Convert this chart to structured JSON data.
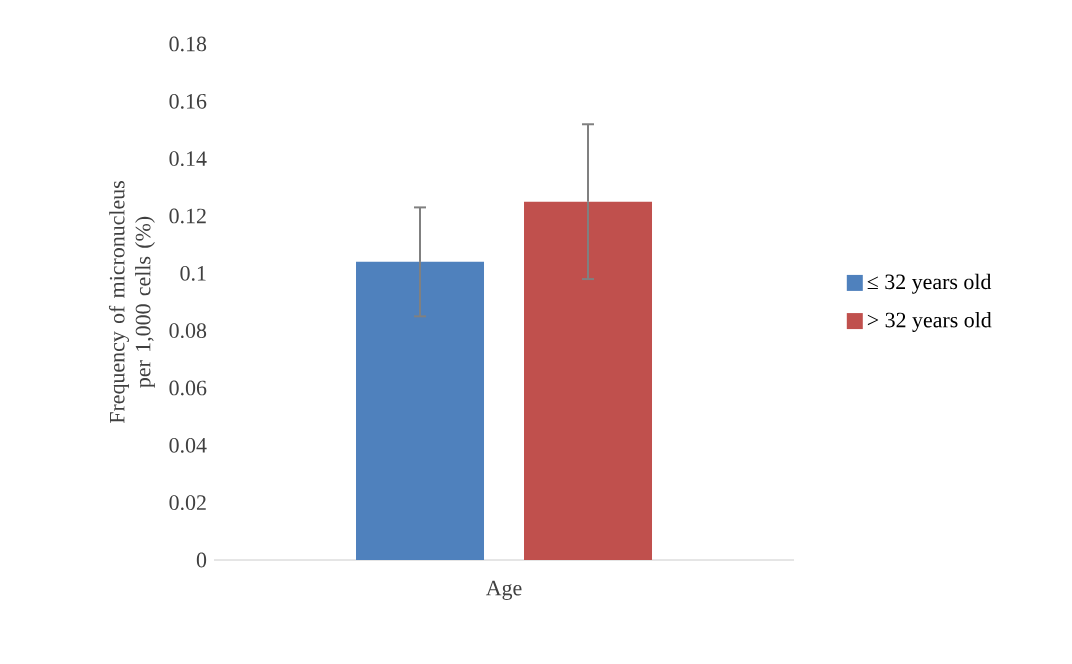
{
  "chart_data": {
    "type": "bar",
    "xlabel": "Age",
    "ylabel": "Frequency of micronucleus per 1,000 cells (%)",
    "categories": [
      null
    ],
    "series": [
      {
        "name": "≤ 32 years old",
        "color": "#4f81bd",
        "values": [
          0.104
        ],
        "errors": [
          0.019
        ]
      },
      {
        "name": "> 32 years old",
        "color": "#c0504d",
        "values": [
          0.125
        ],
        "errors": [
          0.027
        ]
      }
    ],
    "ylim": [
      0,
      0.18
    ],
    "yticks": [
      0,
      0.02,
      0.04,
      0.06,
      0.08,
      0.1,
      0.12,
      0.14,
      0.16,
      0.18
    ],
    "legend": "right"
  }
}
